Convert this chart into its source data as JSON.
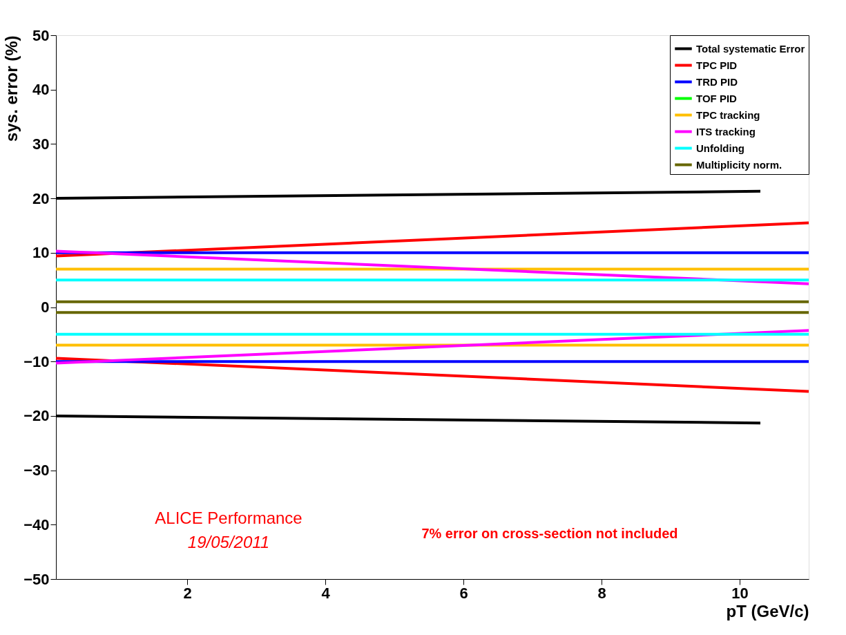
{
  "chart_data": {
    "type": "line",
    "xlabel": "pT (GeV/c)",
    "ylabel": "sys. error (%)",
    "xlim": [
      0.1,
      11
    ],
    "xticks": [
      2,
      4,
      6,
      8,
      10
    ],
    "ylim": [
      -50,
      50
    ],
    "yticks": [
      -50,
      -40,
      -30,
      -20,
      -10,
      0,
      10,
      20,
      30,
      40,
      50
    ],
    "grid": false,
    "legend": "top right",
    "marker": "none",
    "line_style": "solid",
    "annotations": [
      "ALICE Performance",
      "19/05/2011",
      "7% error on cross-section not included"
    ],
    "series": [
      {
        "name": "Total systematic Error",
        "color": "#000000",
        "x": [
          0.1,
          10.3
        ],
        "values": [
          20,
          21.3
        ]
      },
      {
        "name": "TPC PID",
        "color": "#ff0000",
        "x": [
          0.1,
          11
        ],
        "values": [
          9.4,
          15.5
        ]
      },
      {
        "name": "TRD PID",
        "color": "#0000ff",
        "x": [
          0.1,
          11
        ],
        "values": [
          10,
          10
        ]
      },
      {
        "name": "TOF PID",
        "color": "#00ff00",
        "values": [
          null
        ]
      },
      {
        "name": "TPC tracking",
        "color": "#ffbf00",
        "x": [
          0.1,
          11
        ],
        "values": [
          7,
          7
        ]
      },
      {
        "name": "ITS tracking",
        "color": "#ff00ff",
        "x": [
          0.1,
          11
        ],
        "values": [
          10.3,
          4.3
        ]
      },
      {
        "name": "Unfolding",
        "color": "#00ffff",
        "x": [
          0.1,
          11
        ],
        "values": [
          5,
          5
        ]
      },
      {
        "name": "Multiplicity norm.",
        "color": "#666600",
        "x": [
          0.1,
          11
        ],
        "values": [
          1,
          1
        ]
      },
      {
        "color": "#000000",
        "x": [
          0.1,
          10.3
        ],
        "values": [
          -20,
          -21.3
        ]
      },
      {
        "color": "#ff0000",
        "x": [
          0.1,
          11
        ],
        "values": [
          -9.4,
          -15.5
        ]
      },
      {
        "color": "#0000ff",
        "x": [
          0.1,
          11
        ],
        "values": [
          -10,
          -10
        ]
      },
      {
        "color": "#ffbf00",
        "x": [
          0.1,
          11
        ],
        "values": [
          -7,
          -7
        ]
      },
      {
        "color": "#ff00ff",
        "x": [
          0.1,
          11
        ],
        "values": [
          -10.3,
          -4.3
        ]
      },
      {
        "color": "#00ffff",
        "x": [
          0.1,
          11
        ],
        "values": [
          -5,
          -5
        ]
      },
      {
        "color": "#666600",
        "x": [
          0.1,
          11
        ],
        "values": [
          -1,
          -1
        ]
      }
    ]
  }
}
